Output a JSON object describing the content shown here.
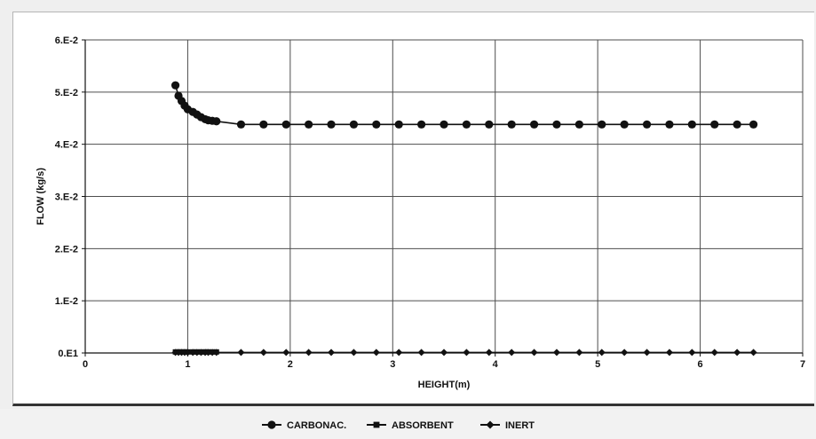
{
  "chart_data": {
    "type": "line",
    "xlabel": "HEIGHT(m)",
    "ylabel": "FLOW  (kg/s)",
    "xlim": [
      0,
      7
    ],
    "ylim": [
      0,
      0.06
    ],
    "x_ticks": [
      0,
      1,
      2,
      3,
      4,
      5,
      6,
      7
    ],
    "x_tick_labels": [
      "0",
      "1",
      "2",
      "3",
      "4",
      "5",
      "6",
      "7"
    ],
    "y_ticks": [
      0,
      0.01,
      0.02,
      0.03,
      0.04,
      0.05,
      0.06
    ],
    "y_tick_labels": [
      "0.E1",
      "1.E-2",
      "2.E-2",
      "3.E-2",
      "4.E-2",
      "5.E-2",
      "6.E-2"
    ],
    "grid": true,
    "legend_position": "bottom",
    "series": [
      {
        "name": "CARBONAC.",
        "marker": "circle",
        "x": [
          0.88,
          0.91,
          0.94,
          0.97,
          1.0,
          1.05,
          1.09,
          1.13,
          1.17,
          1.2,
          1.24,
          1.28,
          1.52,
          1.74,
          1.96,
          2.18,
          2.4,
          2.62,
          2.84,
          3.06,
          3.28,
          3.5,
          3.72,
          3.94,
          4.16,
          4.38,
          4.6,
          4.82,
          5.04,
          5.26,
          5.48,
          5.7,
          5.92,
          6.14,
          6.36,
          6.52
        ],
        "y": [
          0.0513,
          0.0493,
          0.0483,
          0.0474,
          0.0467,
          0.0462,
          0.0457,
          0.0452,
          0.0448,
          0.0446,
          0.0445,
          0.0444,
          0.0438,
          0.0438,
          0.0438,
          0.0438,
          0.0438,
          0.0438,
          0.0438,
          0.0438,
          0.0438,
          0.0438,
          0.0438,
          0.0438,
          0.0438,
          0.0438,
          0.0438,
          0.0438,
          0.0438,
          0.0438,
          0.0438,
          0.0438,
          0.0438,
          0.0438,
          0.0438,
          0.0438
        ]
      },
      {
        "name": "ABSORBENT",
        "marker": "square",
        "x": [
          0.88,
          0.91,
          0.94,
          0.97,
          1.0,
          1.05,
          1.09,
          1.13,
          1.17,
          1.2,
          1.24,
          1.28
        ],
        "y": [
          0.0002,
          0.0002,
          0.0002,
          0.0002,
          0.0002,
          0.0002,
          0.0002,
          0.0002,
          0.0002,
          0.0002,
          0.0002,
          0.0002
        ]
      },
      {
        "name": "INERT",
        "marker": "diamond",
        "x": [
          0.88,
          0.91,
          0.94,
          0.97,
          1.0,
          1.05,
          1.09,
          1.13,
          1.17,
          1.2,
          1.24,
          1.28,
          1.52,
          1.74,
          1.96,
          2.18,
          2.4,
          2.62,
          2.84,
          3.06,
          3.28,
          3.5,
          3.72,
          3.94,
          4.16,
          4.38,
          4.6,
          4.82,
          5.04,
          5.26,
          5.48,
          5.7,
          5.92,
          6.14,
          6.36,
          6.52
        ],
        "y": [
          0.0001,
          0.0001,
          0.0001,
          0.0001,
          0.0001,
          0.0001,
          0.0001,
          0.0001,
          0.0001,
          0.0001,
          0.0001,
          0.0001,
          0.0001,
          0.0001,
          0.0001,
          0.0001,
          0.0001,
          0.0001,
          0.0001,
          0.0001,
          0.0001,
          0.0001,
          0.0001,
          0.0001,
          0.0001,
          0.0001,
          0.0001,
          0.0001,
          0.0001,
          0.0001,
          0.0001,
          0.0001,
          0.0001,
          0.0001,
          0.0001,
          0.0001
        ]
      }
    ]
  },
  "colors": {
    "series": "#111111",
    "grid": "#4d4d4d"
  }
}
